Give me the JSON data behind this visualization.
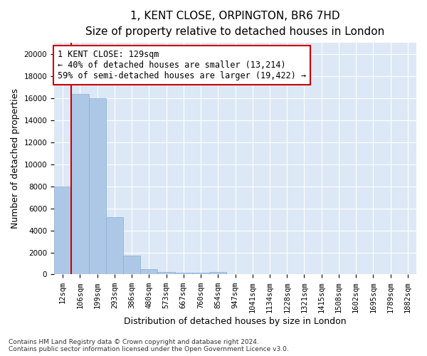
{
  "title_line1": "1, KENT CLOSE, ORPINGTON, BR6 7HD",
  "title_line2": "Size of property relative to detached houses in London",
  "xlabel": "Distribution of detached houses by size in London",
  "ylabel": "Number of detached properties",
  "categories": [
    "12sqm",
    "106sqm",
    "199sqm",
    "293sqm",
    "386sqm",
    "480sqm",
    "573sqm",
    "667sqm",
    "760sqm",
    "854sqm",
    "947sqm",
    "1041sqm",
    "1134sqm",
    "1228sqm",
    "1321sqm",
    "1415sqm",
    "1508sqm",
    "1602sqm",
    "1695sqm",
    "1789sqm",
    "1882sqm"
  ],
  "bar_values": [
    8000,
    16400,
    16000,
    5200,
    1700,
    500,
    250,
    170,
    130,
    200,
    0,
    0,
    0,
    0,
    0,
    0,
    0,
    0,
    0,
    0,
    0
  ],
  "bar_color": "#adc8e6",
  "bar_edge_color": "#89aed4",
  "bg_color": "#dce8f5",
  "grid_color": "#ffffff",
  "vline_x": 0.5,
  "vline_color": "#cc0000",
  "annotation_text": "1 KENT CLOSE: 129sqm\n← 40% of detached houses are smaller (13,214)\n59% of semi-detached houses are larger (19,422) →",
  "annotation_box_color": "#cc0000",
  "ylim": [
    0,
    21000
  ],
  "yticks": [
    0,
    2000,
    4000,
    6000,
    8000,
    10000,
    12000,
    14000,
    16000,
    18000,
    20000
  ],
  "footer_line1": "Contains HM Land Registry data © Crown copyright and database right 2024.",
  "footer_line2": "Contains public sector information licensed under the Open Government Licence v3.0.",
  "title_fontsize": 11,
  "subtitle_fontsize": 9.5,
  "axis_label_fontsize": 9,
  "tick_fontsize": 7.5,
  "annotation_fontsize": 8.5,
  "footer_fontsize": 6.5
}
